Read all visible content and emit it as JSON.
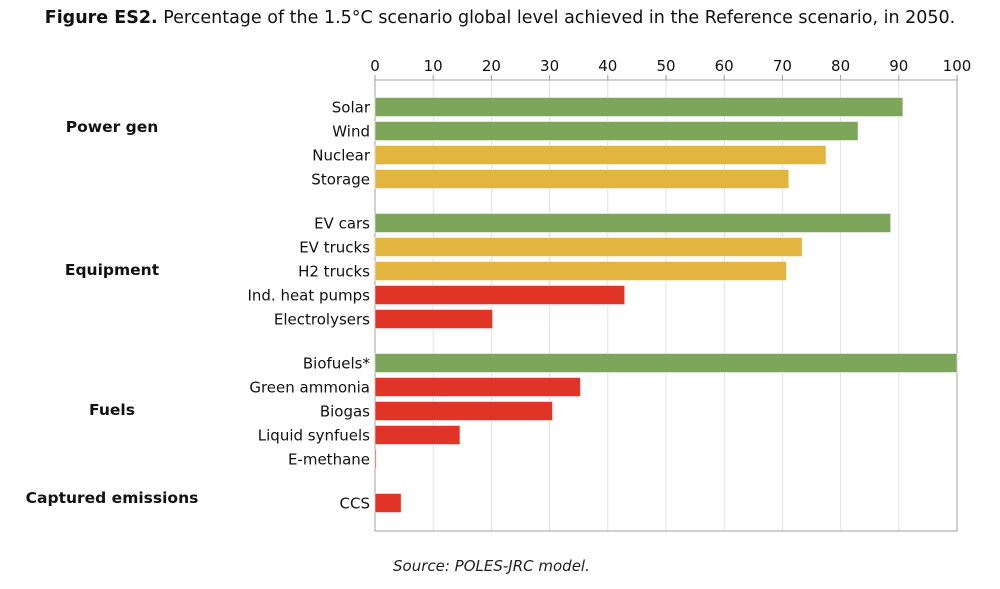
{
  "title_prefix": "Figure ES2.",
  "title_text": "Percentage of the 1.5°C scenario global level achieved in the Reference scenario, in 2050.",
  "source": "Source: POLES-JRC model.",
  "chart_data": {
    "type": "bar",
    "orientation": "horizontal",
    "title": "Percentage of the 1.5°C scenario global level achieved in the Reference scenario, in 2050.",
    "xlim": [
      0,
      100
    ],
    "xticks": [
      0,
      10,
      20,
      30,
      40,
      50,
      60,
      70,
      80,
      90,
      100
    ],
    "x_axis_position": "top",
    "grid": true,
    "colors": {
      "green": "#7ea65b",
      "yellow": "#e3b53e",
      "red": "#e03426"
    },
    "groups": [
      {
        "name": "Power gen",
        "items": [
          {
            "label": "Solar",
            "value": 90.7,
            "color": "green"
          },
          {
            "label": "Wind",
            "value": 83.0,
            "color": "green"
          },
          {
            "label": "Nuclear",
            "value": 77.5,
            "color": "yellow"
          },
          {
            "label": "Storage",
            "value": 71.1,
            "color": "yellow"
          }
        ]
      },
      {
        "name": "Equipment",
        "items": [
          {
            "label": "EV cars",
            "value": 88.6,
            "color": "green"
          },
          {
            "label": "EV trucks",
            "value": 73.4,
            "color": "yellow"
          },
          {
            "label": "H2 trucks",
            "value": 70.7,
            "color": "yellow"
          },
          {
            "label": "Ind. heat pumps",
            "value": 42.9,
            "color": "red"
          },
          {
            "label": "Electrolysers",
            "value": 20.2,
            "color": "red"
          }
        ]
      },
      {
        "name": "Fuels",
        "items": [
          {
            "label": "Biofuels*",
            "value": 100,
            "color": "green"
          },
          {
            "label": "Green ammonia",
            "value": 35.3,
            "color": "red"
          },
          {
            "label": "Biogas",
            "value": 30.5,
            "color": "red"
          },
          {
            "label": "Liquid synfuels",
            "value": 14.6,
            "color": "red"
          },
          {
            "label": "E-methane",
            "value": 0.2,
            "color": "red"
          }
        ]
      },
      {
        "name": "Captured emissions",
        "items": [
          {
            "label": "CCS",
            "value": 4.5,
            "color": "red"
          }
        ]
      }
    ]
  }
}
